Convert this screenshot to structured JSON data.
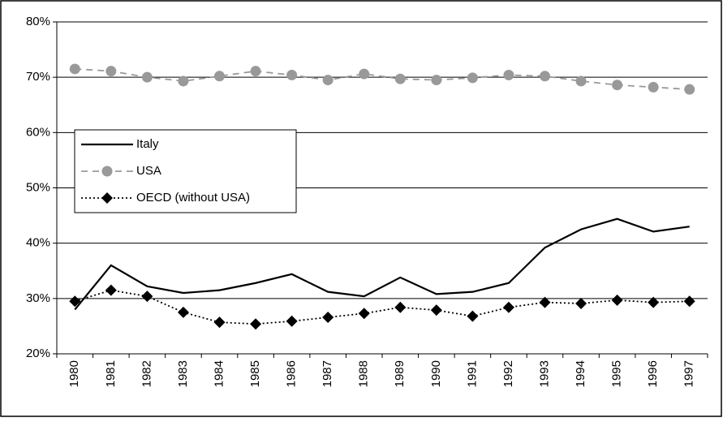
{
  "chart_data": {
    "type": "line",
    "categories": [
      "1980",
      "1981",
      "1982",
      "1983",
      "1984",
      "1985",
      "1986",
      "1987",
      "1988",
      "1989",
      "1990",
      "1991",
      "1992",
      "1993",
      "1994",
      "1995",
      "1996",
      "1997"
    ],
    "series": [
      {
        "name": "Italy",
        "color": "#000000",
        "line_style": "solid",
        "marker": "none",
        "values": [
          28,
          36,
          32.2,
          31,
          31.5,
          32.8,
          34.4,
          31.2,
          30.4,
          33.8,
          30.8,
          31.2,
          32.8,
          39.2,
          42.5,
          44.4,
          42.1,
          43
        ]
      },
      {
        "name": "USA",
        "color": "#999999",
        "line_style": "dashed",
        "marker": "circle",
        "values": [
          71.5,
          71.1,
          70,
          69.3,
          70.2,
          71.1,
          70.4,
          69.5,
          70.6,
          69.7,
          69.5,
          69.9,
          70.4,
          70.2,
          69.3,
          68.6,
          68.2,
          67.8
        ]
      },
      {
        "name": "OECD (without USA)",
        "color": "#000000",
        "line_style": "dotted",
        "marker": "diamond",
        "values": [
          29.5,
          31.5,
          30.4,
          27.5,
          25.7,
          25.4,
          25.9,
          26.6,
          27.3,
          28.4,
          27.9,
          26.8,
          28.4,
          29.3,
          29.1,
          29.7,
          29.3,
          29.5
        ]
      }
    ],
    "ylim": [
      20,
      80
    ],
    "yticks": [
      {
        "value": 20,
        "label": "20%"
      },
      {
        "value": 30,
        "label": "30%"
      },
      {
        "value": 40,
        "label": "40%"
      },
      {
        "value": 50,
        "label": "50%"
      },
      {
        "value": 60,
        "label": "60%"
      },
      {
        "value": 70,
        "label": "70%"
      },
      {
        "value": 80,
        "label": "80%"
      }
    ],
    "grid": true,
    "legend": "left"
  }
}
